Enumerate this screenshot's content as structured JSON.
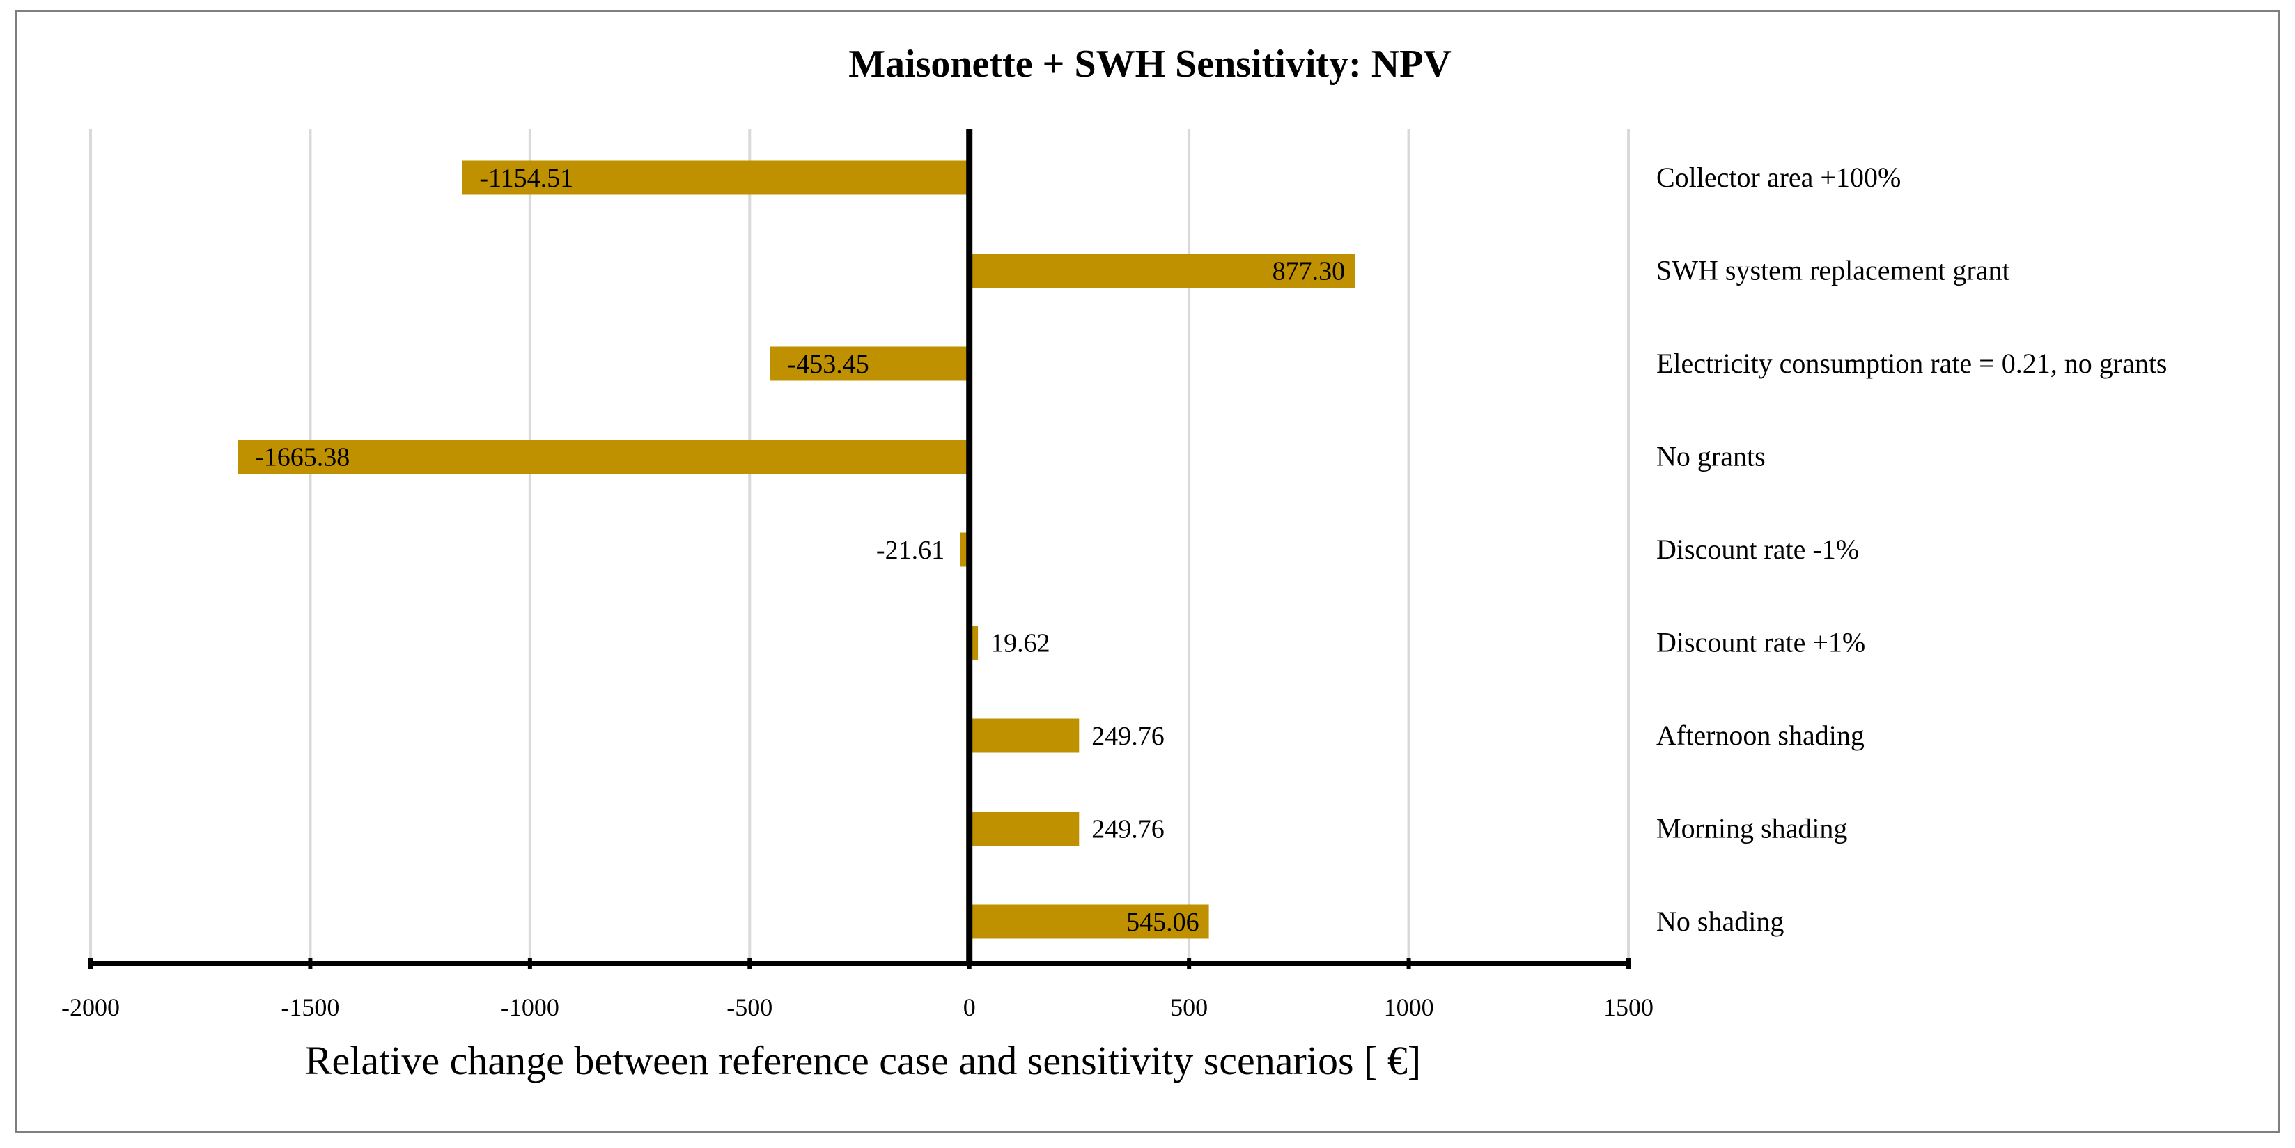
{
  "chart_data": {
    "type": "bar",
    "orientation": "horizontal",
    "title": "Maisonette + SWH Sensitivity: NPV",
    "xlabel": "Relative change between reference case and sensitivity scenarios [ €]",
    "ylabel": "",
    "xlim": [
      -2000,
      1500
    ],
    "xticks": [
      "-2000",
      "-1500",
      "-1000",
      "-500",
      "0",
      "500",
      "1000",
      "1500"
    ],
    "grid": true,
    "legend": "none",
    "bar_color": "#BF9000",
    "categories": [
      "Collector area +100%",
      "SWH system replacement grant",
      "Electricity consumption rate = 0.21, no grants",
      "No grants",
      "Discount rate -1%",
      "Discount rate +1%",
      "Afternoon shading",
      "Morning shading",
      "No shading"
    ],
    "values": [
      -1154.51,
      877.3,
      -453.45,
      -1665.38,
      -21.61,
      19.62,
      249.76,
      249.76,
      545.06
    ],
    "value_labels": [
      "-1154.51",
      "877.30",
      "-453.45",
      "-1665.38",
      "-21.61",
      "19.62",
      "249.76",
      "249.76",
      "545.06"
    ]
  }
}
